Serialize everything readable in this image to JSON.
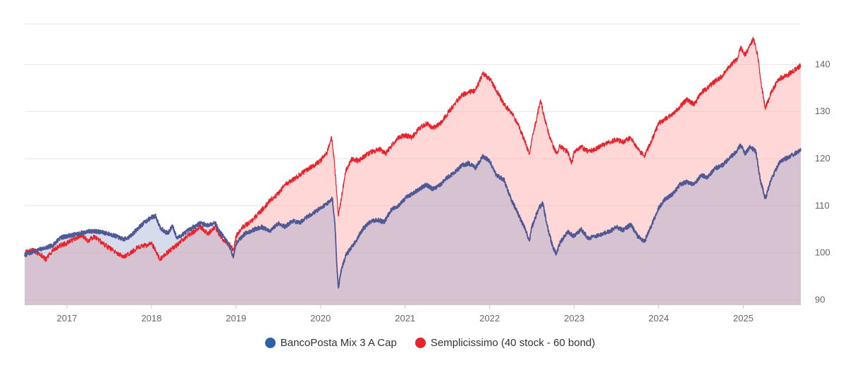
{
  "chart_data": {
    "type": "area",
    "x_ticks": [
      "2017",
      "2018",
      "2019",
      "2020",
      "2021",
      "2022",
      "2023",
      "2024",
      "2025"
    ],
    "y_ticks": [
      90,
      100,
      110,
      120,
      130,
      140
    ],
    "ylim": [
      89,
      151
    ],
    "xlim": [
      2016.5,
      2025.68
    ],
    "grid": true,
    "legend_position": "bottom-center",
    "series": [
      {
        "name": "BancoPosta Mix 3 A Cap",
        "color": "#2f5fa5",
        "line_color": "#4f5a94",
        "fill": "rgba(140,155,200,0.35)",
        "points": [
          [
            2016.5,
            99.5
          ],
          [
            2016.6,
            100.2
          ],
          [
            2016.7,
            100.8
          ],
          [
            2016.83,
            101.5
          ],
          [
            2016.92,
            103.2
          ],
          [
            2017.0,
            103.5
          ],
          [
            2017.08,
            103.8
          ],
          [
            2017.17,
            104.2
          ],
          [
            2017.25,
            104.5
          ],
          [
            2017.33,
            104.6
          ],
          [
            2017.42,
            104.3
          ],
          [
            2017.5,
            104.0
          ],
          [
            2017.58,
            103.5
          ],
          [
            2017.67,
            102.8
          ],
          [
            2017.75,
            103.5
          ],
          [
            2017.83,
            105.0
          ],
          [
            2017.92,
            106.5
          ],
          [
            2018.0,
            107.5
          ],
          [
            2018.05,
            107.8
          ],
          [
            2018.1,
            105.5
          ],
          [
            2018.15,
            104.5
          ],
          [
            2018.2,
            104.2
          ],
          [
            2018.25,
            105.8
          ],
          [
            2018.3,
            103.0
          ],
          [
            2018.4,
            104.3
          ],
          [
            2018.5,
            105.5
          ],
          [
            2018.58,
            106.3
          ],
          [
            2018.67,
            105.8
          ],
          [
            2018.75,
            106.5
          ],
          [
            2018.8,
            104.5
          ],
          [
            2018.85,
            103.5
          ],
          [
            2018.92,
            101.5
          ],
          [
            2018.97,
            99.0
          ],
          [
            2019.0,
            102.0
          ],
          [
            2019.1,
            104.0
          ],
          [
            2019.2,
            104.8
          ],
          [
            2019.3,
            105.5
          ],
          [
            2019.4,
            104.5
          ],
          [
            2019.5,
            106.3
          ],
          [
            2019.58,
            105.5
          ],
          [
            2019.67,
            106.8
          ],
          [
            2019.75,
            106.3
          ],
          [
            2019.83,
            107.5
          ],
          [
            2019.92,
            108.5
          ],
          [
            2020.0,
            109.5
          ],
          [
            2020.1,
            110.8
          ],
          [
            2020.14,
            111.5
          ],
          [
            2020.17,
            106.0
          ],
          [
            2020.19,
            98.0
          ],
          [
            2020.21,
            92.5
          ],
          [
            2020.24,
            96.0
          ],
          [
            2020.3,
            99.5
          ],
          [
            2020.4,
            102.0
          ],
          [
            2020.5,
            105.0
          ],
          [
            2020.58,
            106.5
          ],
          [
            2020.67,
            107.0
          ],
          [
            2020.75,
            106.5
          ],
          [
            2020.83,
            109.0
          ],
          [
            2020.92,
            110.0
          ],
          [
            2021.0,
            111.5
          ],
          [
            2021.08,
            112.5
          ],
          [
            2021.17,
            113.5
          ],
          [
            2021.25,
            114.5
          ],
          [
            2021.33,
            113.5
          ],
          [
            2021.42,
            114.5
          ],
          [
            2021.5,
            116.0
          ],
          [
            2021.58,
            117.0
          ],
          [
            2021.67,
            118.5
          ],
          [
            2021.75,
            119.0
          ],
          [
            2021.83,
            118.0
          ],
          [
            2021.92,
            120.5
          ],
          [
            2022.0,
            119.5
          ],
          [
            2022.08,
            116.5
          ],
          [
            2022.17,
            115.5
          ],
          [
            2022.25,
            111.5
          ],
          [
            2022.33,
            108.5
          ],
          [
            2022.42,
            105.0
          ],
          [
            2022.47,
            102.5
          ],
          [
            2022.5,
            105.5
          ],
          [
            2022.58,
            109.5
          ],
          [
            2022.63,
            110.5
          ],
          [
            2022.67,
            106.5
          ],
          [
            2022.75,
            101.0
          ],
          [
            2022.79,
            99.8
          ],
          [
            2022.83,
            102.0
          ],
          [
            2022.92,
            104.5
          ],
          [
            2023.0,
            103.5
          ],
          [
            2023.08,
            105.0
          ],
          [
            2023.17,
            103.0
          ],
          [
            2023.25,
            103.5
          ],
          [
            2023.33,
            104.0
          ],
          [
            2023.42,
            104.5
          ],
          [
            2023.5,
            105.5
          ],
          [
            2023.58,
            104.8
          ],
          [
            2023.67,
            106.0
          ],
          [
            2023.75,
            103.5
          ],
          [
            2023.83,
            102.3
          ],
          [
            2023.92,
            106.0
          ],
          [
            2024.0,
            109.5
          ],
          [
            2024.08,
            111.5
          ],
          [
            2024.17,
            112.5
          ],
          [
            2024.25,
            114.5
          ],
          [
            2024.33,
            115.0
          ],
          [
            2024.42,
            114.5
          ],
          [
            2024.5,
            116.5
          ],
          [
            2024.58,
            116.0
          ],
          [
            2024.67,
            118.0
          ],
          [
            2024.75,
            118.5
          ],
          [
            2024.83,
            120.0
          ],
          [
            2024.92,
            121.5
          ],
          [
            2024.97,
            123.0
          ],
          [
            2025.02,
            121.0
          ],
          [
            2025.08,
            122.5
          ],
          [
            2025.15,
            121.5
          ],
          [
            2025.2,
            115.5
          ],
          [
            2025.26,
            111.5
          ],
          [
            2025.33,
            115.5
          ],
          [
            2025.42,
            119.0
          ],
          [
            2025.5,
            120.0
          ],
          [
            2025.58,
            120.8
          ],
          [
            2025.68,
            121.8
          ]
        ]
      },
      {
        "name": "Semplicissimo (40 stock - 60 bond)",
        "color": "#e8222a",
        "line_color": "#e8222a",
        "fill": "rgba(255,175,175,0.5)",
        "points": [
          [
            2016.5,
            100.0
          ],
          [
            2016.6,
            100.5
          ],
          [
            2016.7,
            99.5
          ],
          [
            2016.75,
            98.5
          ],
          [
            2016.83,
            100.5
          ],
          [
            2016.92,
            101.5
          ],
          [
            2017.0,
            102.0
          ],
          [
            2017.08,
            102.8
          ],
          [
            2017.17,
            103.8
          ],
          [
            2017.25,
            102.5
          ],
          [
            2017.33,
            103.5
          ],
          [
            2017.42,
            102.0
          ],
          [
            2017.5,
            101.0
          ],
          [
            2017.58,
            100.0
          ],
          [
            2017.67,
            99.0
          ],
          [
            2017.75,
            100.0
          ],
          [
            2017.83,
            101.0
          ],
          [
            2017.92,
            101.5
          ],
          [
            2018.0,
            102.0
          ],
          [
            2018.05,
            100.5
          ],
          [
            2018.1,
            98.5
          ],
          [
            2018.15,
            99.5
          ],
          [
            2018.25,
            101.0
          ],
          [
            2018.33,
            102.0
          ],
          [
            2018.42,
            103.5
          ],
          [
            2018.5,
            104.5
          ],
          [
            2018.58,
            105.5
          ],
          [
            2018.67,
            104.0
          ],
          [
            2018.75,
            105.5
          ],
          [
            2018.83,
            103.0
          ],
          [
            2018.92,
            101.8
          ],
          [
            2018.97,
            100.5
          ],
          [
            2019.0,
            103.5
          ],
          [
            2019.08,
            105.5
          ],
          [
            2019.17,
            106.5
          ],
          [
            2019.25,
            108.0
          ],
          [
            2019.33,
            109.5
          ],
          [
            2019.42,
            111.5
          ],
          [
            2019.5,
            112.5
          ],
          [
            2019.58,
            114.5
          ],
          [
            2019.67,
            115.5
          ],
          [
            2019.75,
            116.5
          ],
          [
            2019.83,
            117.5
          ],
          [
            2019.92,
            118.5
          ],
          [
            2020.0,
            119.5
          ],
          [
            2020.08,
            121.5
          ],
          [
            2020.13,
            124.5
          ],
          [
            2020.16,
            120.0
          ],
          [
            2020.19,
            113.0
          ],
          [
            2020.21,
            107.8
          ],
          [
            2020.25,
            112.0
          ],
          [
            2020.3,
            117.5
          ],
          [
            2020.37,
            120.0
          ],
          [
            2020.45,
            119.5
          ],
          [
            2020.55,
            121.0
          ],
          [
            2020.62,
            121.5
          ],
          [
            2020.7,
            122.0
          ],
          [
            2020.77,
            121.0
          ],
          [
            2020.83,
            122.5
          ],
          [
            2020.92,
            124.5
          ],
          [
            2021.0,
            125.0
          ],
          [
            2021.08,
            124.5
          ],
          [
            2021.17,
            126.5
          ],
          [
            2021.25,
            127.5
          ],
          [
            2021.33,
            126.5
          ],
          [
            2021.42,
            127.5
          ],
          [
            2021.5,
            129.5
          ],
          [
            2021.58,
            131.5
          ],
          [
            2021.67,
            133.5
          ],
          [
            2021.75,
            134.0
          ],
          [
            2021.83,
            134.5
          ],
          [
            2021.92,
            138.0
          ],
          [
            2022.0,
            137.0
          ],
          [
            2022.08,
            134.5
          ],
          [
            2022.17,
            131.5
          ],
          [
            2022.25,
            130.0
          ],
          [
            2022.33,
            127.5
          ],
          [
            2022.42,
            123.5
          ],
          [
            2022.47,
            121.0
          ],
          [
            2022.5,
            124.0
          ],
          [
            2022.55,
            128.0
          ],
          [
            2022.6,
            132.5
          ],
          [
            2022.65,
            128.5
          ],
          [
            2022.72,
            124.0
          ],
          [
            2022.79,
            121.0
          ],
          [
            2022.83,
            122.5
          ],
          [
            2022.92,
            121.5
          ],
          [
            2022.97,
            119.0
          ],
          [
            2023.0,
            121.5
          ],
          [
            2023.08,
            122.5
          ],
          [
            2023.17,
            121.5
          ],
          [
            2023.25,
            122.0
          ],
          [
            2023.33,
            122.8
          ],
          [
            2023.42,
            123.5
          ],
          [
            2023.5,
            124.0
          ],
          [
            2023.58,
            123.5
          ],
          [
            2023.67,
            124.5
          ],
          [
            2023.75,
            122.0
          ],
          [
            2023.83,
            120.5
          ],
          [
            2023.92,
            124.0
          ],
          [
            2024.0,
            127.5
          ],
          [
            2024.08,
            128.5
          ],
          [
            2024.17,
            129.5
          ],
          [
            2024.25,
            131.0
          ],
          [
            2024.33,
            132.5
          ],
          [
            2024.42,
            131.5
          ],
          [
            2024.5,
            134.0
          ],
          [
            2024.58,
            135.0
          ],
          [
            2024.67,
            136.5
          ],
          [
            2024.75,
            137.5
          ],
          [
            2024.83,
            139.5
          ],
          [
            2024.92,
            141.0
          ],
          [
            2024.97,
            143.5
          ],
          [
            2025.02,
            142.0
          ],
          [
            2025.08,
            144.0
          ],
          [
            2025.12,
            145.5
          ],
          [
            2025.17,
            142.0
          ],
          [
            2025.21,
            136.0
          ],
          [
            2025.26,
            130.8
          ],
          [
            2025.33,
            134.0
          ],
          [
            2025.42,
            137.0
          ],
          [
            2025.5,
            137.5
          ],
          [
            2025.58,
            138.5
          ],
          [
            2025.68,
            139.8
          ]
        ]
      }
    ]
  }
}
